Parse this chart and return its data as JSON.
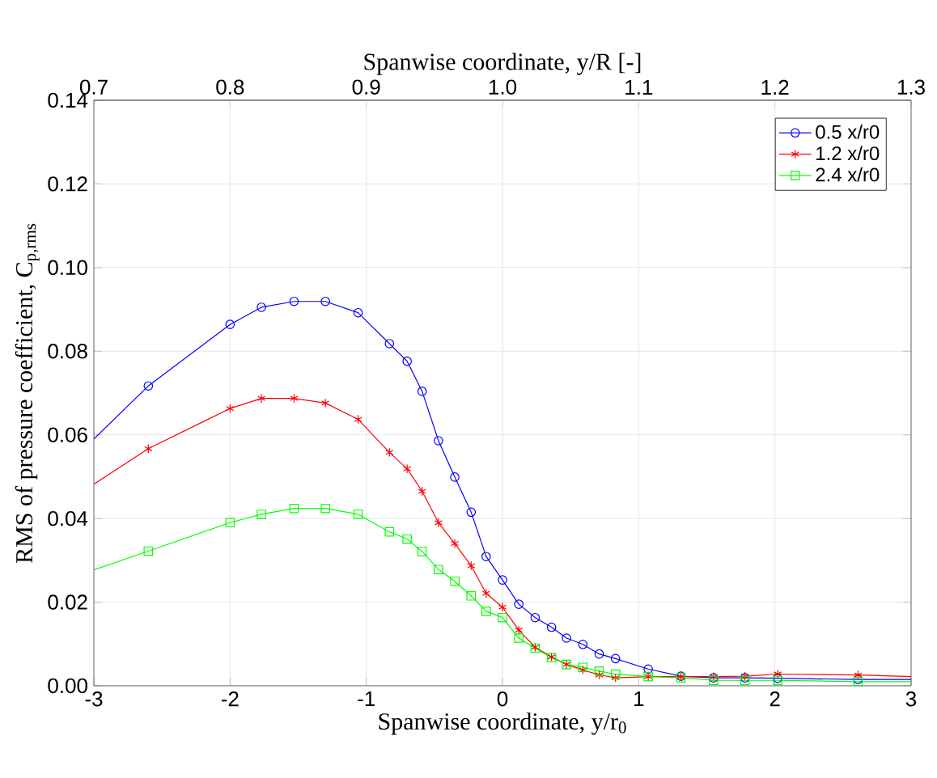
{
  "chart_data": {
    "type": "line",
    "xlabel": "Spanwise coordinate, y/r$_{0}$",
    "x2label": "Spanwise coordinate, y/R [-]",
    "ylabel": "RMS of pressure coefficient, C$_{p,rms}$",
    "xlim": [
      -3,
      3
    ],
    "xticks": [
      -3,
      -2,
      -1,
      0,
      1,
      2,
      3
    ],
    "x2lim": [
      0.7,
      1.3
    ],
    "x2ticks": [
      0.7,
      0.8,
      0.9,
      {
        "value": 1.0,
        "label": "1.0"
      },
      1.1,
      1.2,
      1.3
    ],
    "ylim": [
      0,
      0.14
    ],
    "yticks": [
      {
        "value": 0,
        "label": "0.00"
      },
      {
        "value": 0.02,
        "label": "0.02"
      },
      {
        "value": 0.04,
        "label": "0.04"
      },
      {
        "value": 0.06,
        "label": "0.06"
      },
      {
        "value": 0.08,
        "label": "0.08"
      },
      {
        "value": 0.1,
        "label": "0.10"
      },
      {
        "value": 0.12,
        "label": "0.12"
      },
      {
        "value": 0.14,
        "label": "0.14"
      }
    ],
    "grid": true,
    "legend": "top right",
    "line_style": "solid",
    "series": [
      {
        "name": "0.5 x/r0",
        "color": "#0000ff",
        "marker": "circle",
        "x": [
          -3,
          -2.6,
          -2.0,
          -1.77,
          -1.53,
          -1.3,
          -1.06,
          -0.83,
          -0.7,
          -0.59,
          -0.47,
          -0.35,
          -0.23,
          -0.12,
          0,
          0.12,
          0.24,
          0.36,
          0.47,
          0.59,
          0.71,
          0.83,
          1.07,
          1.31,
          1.55,
          1.78,
          2.02,
          2.61,
          3
        ],
        "values": [
          0.059,
          0.0717,
          0.0864,
          0.0905,
          0.0919,
          0.0919,
          0.0892,
          0.0818,
          0.0776,
          0.0704,
          0.0586,
          0.0499,
          0.0415,
          0.0309,
          0.0253,
          0.0195,
          0.0163,
          0.014,
          0.0114,
          0.0099,
          0.0076,
          0.0065,
          0.004,
          0.0023,
          0.0019,
          0.0019,
          0.0018,
          0.0015,
          0.0015
        ]
      },
      {
        "name": "1.2 x/r0",
        "color": "#ff0000",
        "marker": "cross",
        "x": [
          -3,
          -2.6,
          -2.0,
          -1.77,
          -1.53,
          -1.3,
          -1.06,
          -0.83,
          -0.7,
          -0.59,
          -0.47,
          -0.35,
          -0.23,
          -0.12,
          0,
          0.12,
          0.24,
          0.36,
          0.47,
          0.59,
          0.71,
          0.83,
          1.07,
          1.31,
          1.55,
          1.78,
          2.02,
          2.61,
          3
        ],
        "values": [
          0.0482,
          0.0567,
          0.0663,
          0.0687,
          0.0687,
          0.0676,
          0.0637,
          0.0558,
          0.0519,
          0.0465,
          0.039,
          0.034,
          0.0287,
          0.0221,
          0.0188,
          0.0133,
          0.0092,
          0.0069,
          0.0051,
          0.0038,
          0.0026,
          0.0019,
          0.0022,
          0.0022,
          0.0022,
          0.0023,
          0.0028,
          0.0026,
          0.0022
        ]
      },
      {
        "name": "2.4 x/r0",
        "color": "#00ff00",
        "marker": "square",
        "x": [
          -3,
          -2.6,
          -2.0,
          -1.77,
          -1.53,
          -1.3,
          -1.06,
          -0.83,
          -0.7,
          -0.59,
          -0.47,
          -0.35,
          -0.23,
          -0.12,
          0,
          0.12,
          0.24,
          0.36,
          0.47,
          0.59,
          0.71,
          0.83,
          1.07,
          1.31,
          1.55,
          1.78,
          2.02,
          2.61,
          3
        ],
        "values": [
          0.0277,
          0.0322,
          0.039,
          0.041,
          0.0424,
          0.0424,
          0.041,
          0.0368,
          0.0351,
          0.0321,
          0.0278,
          0.025,
          0.0215,
          0.0178,
          0.0163,
          0.0114,
          0.009,
          0.0067,
          0.0051,
          0.0044,
          0.0035,
          0.0028,
          0.0022,
          0.0019,
          0.0013,
          0.0013,
          0.0013,
          0.001,
          0.001
        ]
      }
    ]
  }
}
